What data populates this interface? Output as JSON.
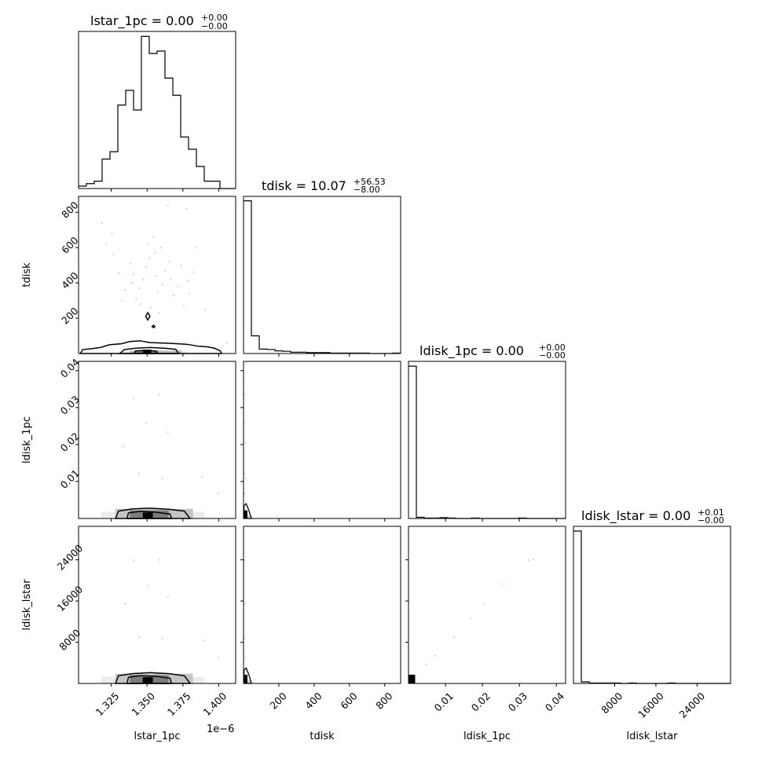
{
  "chart_data": {
    "type": "corner",
    "parameters": [
      "lstar_1pc",
      "tdisk",
      "ldisk_1pc",
      "ldisk_lstar"
    ],
    "titles": [
      {
        "param": "lstar_1pc",
        "text": "lstar_1pc = 0.00",
        "sup": "+0.00",
        "sub": "−0.00"
      },
      {
        "param": "tdisk",
        "text": "tdisk = 10.07",
        "sup": "+56.53",
        "sub": "−8.00"
      },
      {
        "param": "ldisk_1pc",
        "text": "ldisk_1pc = 0.00",
        "sup": "+0.00",
        "sub": "−0.00"
      },
      {
        "param": "ldisk_lstar",
        "text": "ldisk_lstar = 0.00",
        "sup": "+0.01",
        "sub": "−0.00"
      }
    ],
    "xlabels": [
      "lstar_1pc",
      "tdisk",
      "ldisk_1pc",
      "ldisk_lstar"
    ],
    "ylabels": [
      "",
      "tdisk",
      "ldisk_1pc",
      "ldisk_lstar"
    ],
    "ranges": [
      [
        1.3022,
        1.4118
      ],
      [
        0,
        890
      ],
      [
        0,
        0.0425
      ],
      [
        0,
        30500
      ]
    ],
    "ticks": [
      {
        "values": [
          1.325,
          1.35,
          1.375,
          1.4
        ],
        "labels": [
          "1.325",
          "1.350",
          "1.375",
          "1.400"
        ],
        "offset_text": "1e−6"
      },
      {
        "values": [
          200,
          400,
          600,
          800
        ],
        "labels": [
          "200",
          "400",
          "600",
          "800"
        ]
      },
      {
        "values": [
          0.01,
          0.02,
          0.03,
          0.04
        ],
        "labels": [
          "0.01",
          "0.02",
          "0.03",
          "0.04"
        ]
      },
      {
        "values": [
          8000,
          16000,
          24000
        ],
        "labels": [
          "8000",
          "16000",
          "24000"
        ]
      }
    ],
    "histograms": [
      {
        "param": "lstar_1pc",
        "counts": [
          1,
          2,
          3,
          12,
          15,
          34,
          40,
          32,
          62,
          55,
          56,
          45,
          38,
          21,
          16,
          9,
          3,
          3,
          0,
          0
        ],
        "max": 64
      },
      {
        "param": "tdisk",
        "counts": [
          345,
          40,
          10,
          9,
          6,
          5,
          3,
          3,
          2,
          2,
          2,
          1,
          1,
          1,
          1,
          1,
          0,
          0,
          0,
          1
        ],
        "max": 355
      },
      {
        "param": "ldisk_1pc",
        "counts": [
          380,
          3,
          1,
          1,
          2,
          1,
          0,
          0,
          1,
          0,
          0,
          0,
          0,
          0,
          1,
          0,
          0,
          0,
          0,
          0
        ],
        "max": 392
      },
      {
        "param": "ldisk_lstar",
        "counts": [
          390,
          4,
          1,
          1,
          1,
          1,
          0,
          1,
          0,
          0,
          0,
          0,
          1,
          0,
          0,
          0,
          0,
          0,
          0,
          0
        ],
        "max": 402
      }
    ],
    "scatter": [
      {
        "x": "lstar_1pc",
        "y": "tdisk",
        "points": [
          [
            1.3185,
            740
          ],
          [
            1.3215,
            620
          ],
          [
            1.3255,
            680
          ],
          [
            1.3265,
            560
          ],
          [
            1.3305,
            455
          ],
          [
            1.3325,
            300
          ],
          [
            1.3345,
            360
          ],
          [
            1.3385,
            510
          ],
          [
            1.3395,
            400
          ],
          [
            1.3405,
            450
          ],
          [
            1.3425,
            310
          ],
          [
            1.3445,
            370
          ],
          [
            1.3455,
            280
          ],
          [
            1.3475,
            420
          ],
          [
            1.3495,
            490
          ],
          [
            1.3505,
            620
          ],
          [
            1.3515,
            540
          ],
          [
            1.3525,
            260
          ],
          [
            1.3545,
            660
          ],
          [
            1.3555,
            570
          ],
          [
            1.3565,
            440
          ],
          [
            1.3575,
            350
          ],
          [
            1.3585,
            230
          ],
          [
            1.3595,
            600
          ],
          [
            1.3605,
            390
          ],
          [
            1.3625,
            470
          ],
          [
            1.3645,
            840
          ],
          [
            1.3655,
            520
          ],
          [
            1.3665,
            420
          ],
          [
            1.3685,
            330
          ],
          [
            1.3715,
            380
          ],
          [
            1.3735,
            500
          ],
          [
            1.3755,
            270
          ],
          [
            1.3775,
            820
          ],
          [
            1.3785,
            410
          ],
          [
            1.3795,
            340
          ],
          [
            1.3825,
            460
          ],
          [
            1.3845,
            600
          ],
          [
            1.3905,
            250
          ],
          [
            1.4055,
            60
          ]
        ]
      },
      {
        "x": "lstar_1pc",
        "y": "ldisk_1pc",
        "points": [
          [
            1.3335,
            0.0195
          ],
          [
            1.3405,
            0.0325
          ],
          [
            1.3445,
            0.0122
          ],
          [
            1.3495,
            0.0258
          ],
          [
            1.3585,
            0.0335
          ],
          [
            1.3605,
            0.0108
          ],
          [
            1.3645,
            0.0233
          ],
          [
            1.3885,
            0.0112
          ],
          [
            1.3995,
            0.0068
          ]
        ]
      },
      {
        "x": "lstar_1pc",
        "y": "ldisk_lstar",
        "points": [
          [
            1.3345,
            15500
          ],
          [
            1.3405,
            23900
          ],
          [
            1.3445,
            9000
          ],
          [
            1.3505,
            19000
          ],
          [
            1.3585,
            24000
          ],
          [
            1.3605,
            8700
          ],
          [
            1.3645,
            16800
          ],
          [
            1.3895,
            8300
          ],
          [
            1.3995,
            5000
          ]
        ]
      },
      {
        "x": "tdisk",
        "y": "ldisk_1pc",
        "points": [
          [
            5,
            0.026
          ],
          [
            8,
            0.0335
          ],
          [
            10,
            0.0205
          ],
          [
            5,
            0.0122
          ],
          [
            12,
            0.0108
          ],
          [
            6,
            0.0068
          ]
        ]
      },
      {
        "x": "tdisk",
        "y": "ldisk_lstar",
        "points": [
          [
            5,
            23900
          ],
          [
            8,
            15500
          ],
          [
            6,
            8700
          ],
          [
            10,
            5000
          ]
        ]
      },
      {
        "x": "ldisk_1pc",
        "y": "ldisk_lstar",
        "points": [
          [
            0.0338,
            24100
          ],
          [
            0.0325,
            23900
          ],
          [
            0.0258,
            19300
          ],
          [
            0.0205,
            15500
          ],
          [
            0.0168,
            12600
          ],
          [
            0.0122,
            9000
          ],
          [
            0.0072,
            5400
          ],
          [
            0.0048,
            3700
          ]
        ]
      }
    ]
  }
}
